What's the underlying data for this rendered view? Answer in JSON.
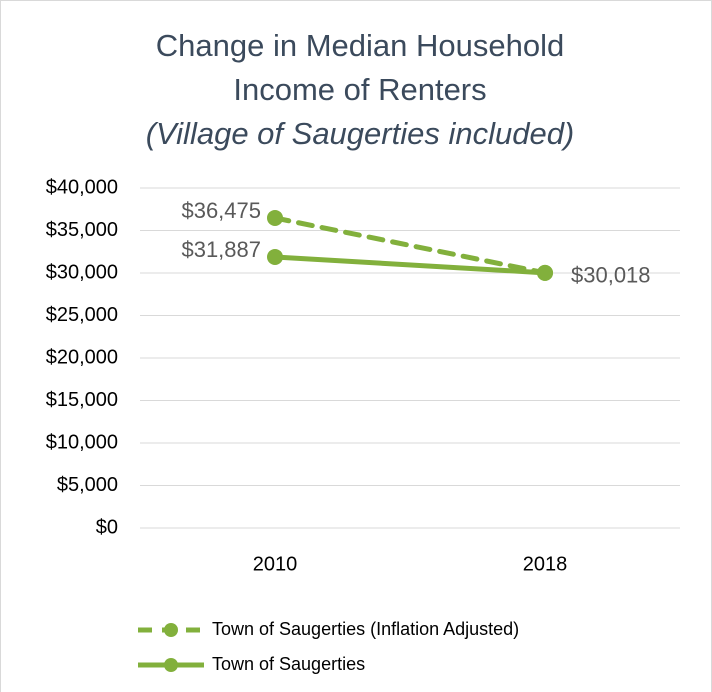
{
  "chart_data": {
    "type": "line",
    "title": [
      "Change in Median Household",
      "Income of Renters"
    ],
    "subtitle": "(Village of Saugerties included)",
    "categories": [
      "2010",
      "2018"
    ],
    "series": [
      {
        "name": "Town of Saugerties (Inflation Adjusted)",
        "color": "#82b03c",
        "dashed": true,
        "values": [
          36475,
          30018
        ],
        "value_labels": [
          "$36,475",
          null
        ]
      },
      {
        "name": "Town of Saugerties",
        "color": "#82b03c",
        "dashed": false,
        "values": [
          31887,
          30018
        ],
        "value_labels": [
          "$31,887",
          "$30,018"
        ]
      }
    ],
    "ylim": [
      0,
      40000
    ],
    "yticks": [
      {
        "value": 0,
        "label": "$0"
      },
      {
        "value": 5000,
        "label": "$5,000"
      },
      {
        "value": 10000,
        "label": "$10,000"
      },
      {
        "value": 15000,
        "label": "$15,000"
      },
      {
        "value": 20000,
        "label": "$20,000"
      },
      {
        "value": 25000,
        "label": "$25,000"
      },
      {
        "value": 30000,
        "label": "$30,000"
      },
      {
        "value": 35000,
        "label": "$35,000"
      },
      {
        "value": 40000,
        "label": "$40,000"
      }
    ],
    "grid": true,
    "legend": "bottom"
  }
}
